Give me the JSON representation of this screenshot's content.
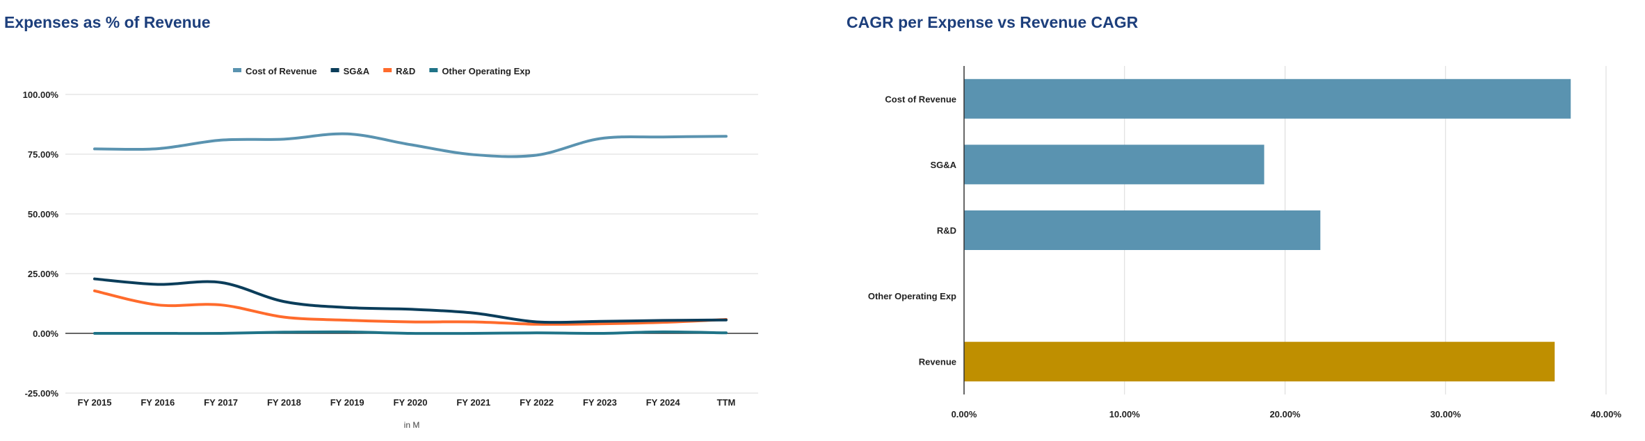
{
  "chart_data": [
    {
      "type": "line",
      "title": "Expenses as % of Revenue",
      "xlabel": "in M",
      "ylabel": "",
      "categories": [
        "FY 2015",
        "FY 2016",
        "FY 2017",
        "FY 2018",
        "FY 2019",
        "FY 2020",
        "FY 2021",
        "FY 2022",
        "FY 2023",
        "FY 2024",
        "TTM"
      ],
      "ylim": [
        -25,
        100
      ],
      "yticks": [
        -25,
        0,
        25,
        50,
        75,
        100
      ],
      "ytick_labels": [
        "-25.00%",
        "0.00%",
        "25.00%",
        "50.00%",
        "75.00%",
        "100.00%"
      ],
      "grid": true,
      "legend_position": "top",
      "series": [
        {
          "name": "Cost of Revenue",
          "color": "#5a93b0",
          "values": [
            77.2,
            77.3,
            80.9,
            81.3,
            83.5,
            79.0,
            74.8,
            74.6,
            81.5,
            82.2,
            82.5
          ]
        },
        {
          "name": "SG&A",
          "color": "#0b3d5a",
          "values": [
            22.8,
            20.5,
            21.3,
            13.3,
            10.8,
            10.1,
            8.5,
            4.8,
            5.0,
            5.4,
            5.6
          ]
        },
        {
          "name": "R&D",
          "color": "#ff6b2c",
          "values": [
            17.8,
            11.9,
            11.9,
            6.8,
            5.5,
            4.8,
            4.8,
            3.8,
            4.0,
            4.6,
            5.8
          ]
        },
        {
          "name": "Other Operating Exp",
          "color": "#1f7387",
          "values": [
            0.0,
            0.0,
            0.0,
            0.5,
            0.6,
            0.0,
            0.0,
            0.2,
            0.0,
            0.6,
            0.2
          ]
        }
      ]
    },
    {
      "type": "bar",
      "orientation": "horizontal",
      "title": "CAGR per Expense vs Revenue CAGR",
      "categories": [
        "Cost of Revenue",
        "SG&A",
        "R&D",
        "Other Operating Exp",
        "Revenue"
      ],
      "values": [
        37.8,
        18.7,
        22.2,
        0,
        36.8
      ],
      "colors": [
        "#5a93b0",
        "#5a93b0",
        "#5a93b0",
        "#5a93b0",
        "#bf8f00"
      ],
      "xlim": [
        0,
        40
      ],
      "xticks": [
        0,
        10,
        20,
        30,
        40
      ],
      "xtick_labels": [
        "0.00%",
        "10.00%",
        "20.00%",
        "30.00%",
        "40.00%"
      ],
      "grid": true
    }
  ]
}
